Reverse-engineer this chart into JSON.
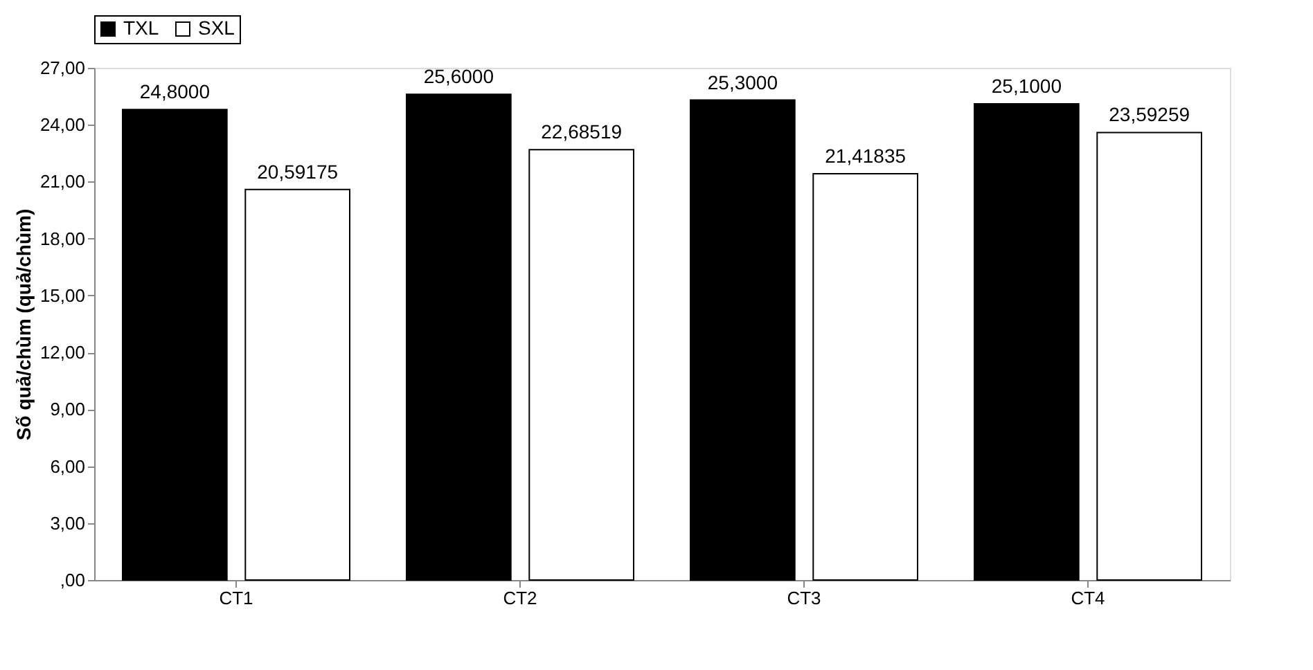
{
  "chart_data": {
    "type": "bar",
    "ylabel": "Số quả/chùm (quả/chùm)",
    "categories": [
      "CT1",
      "CT2",
      "CT3",
      "CT4"
    ],
    "series": [
      {
        "name": "TXL",
        "color": "#000000",
        "values": [
          24.8,
          25.6,
          25.3,
          25.1
        ],
        "value_labels": [
          "24,8000",
          "25,6000",
          "25,3000",
          "25,1000"
        ]
      },
      {
        "name": "SXL",
        "color": "#ffffff",
        "values": [
          20.59175,
          22.68519,
          21.41835,
          23.59259
        ],
        "value_labels": [
          "20,59175",
          "22,68519",
          "21,41835",
          "23,59259"
        ]
      }
    ],
    "ylim": [
      0,
      27
    ],
    "yticks": [
      {
        "value": 0,
        "label": ",00"
      },
      {
        "value": 3,
        "label": "3,00"
      },
      {
        "value": 6,
        "label": "6,00"
      },
      {
        "value": 9,
        "label": "9,00"
      },
      {
        "value": 12,
        "label": "12,00"
      },
      {
        "value": 15,
        "label": "15,00"
      },
      {
        "value": 18,
        "label": "18,00"
      },
      {
        "value": 21,
        "label": "21,00"
      },
      {
        "value": 24,
        "label": "24,00"
      },
      {
        "value": 27,
        "label": "27,00"
      }
    ],
    "legend": "top",
    "grid": false
  }
}
